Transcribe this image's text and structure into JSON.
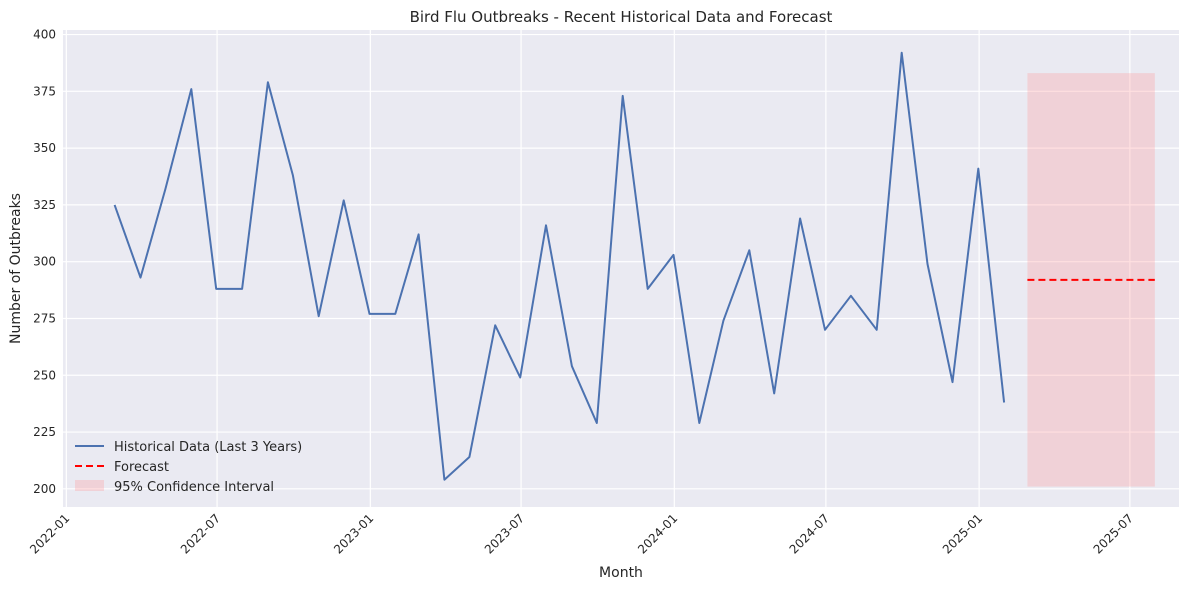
{
  "chart_data": {
    "type": "line",
    "title": "Bird Flu Outbreaks - Recent Historical Data and Forecast",
    "xlabel": "Month",
    "ylabel": "Number of Outbreaks",
    "ylim": [
      192,
      402
    ],
    "xlim": [
      "2021-12-28",
      "2025-08-29"
    ],
    "yticks": [
      200,
      225,
      250,
      275,
      300,
      325,
      350,
      375,
      400
    ],
    "xticks": [
      "2022-01",
      "2022-07",
      "2023-01",
      "2023-07",
      "2024-01",
      "2024-07",
      "2025-01",
      "2025-07"
    ],
    "grid": true,
    "legend_position": "lower-left",
    "series": [
      {
        "name": "Historical Data (Last 3 Years)",
        "color": "#4c72b0",
        "style": "solid",
        "x": [
          "2022-02-28",
          "2022-03-31",
          "2022-04-30",
          "2022-05-31",
          "2022-06-30",
          "2022-07-31",
          "2022-08-31",
          "2022-09-30",
          "2022-10-31",
          "2022-11-30",
          "2022-12-31",
          "2023-01-31",
          "2023-02-28",
          "2023-03-31",
          "2023-04-30",
          "2023-05-31",
          "2023-06-30",
          "2023-07-31",
          "2023-08-31",
          "2023-09-30",
          "2023-10-31",
          "2023-11-30",
          "2023-12-31",
          "2024-01-31",
          "2024-02-29",
          "2024-03-31",
          "2024-04-30",
          "2024-05-31",
          "2024-06-30",
          "2024-07-31",
          "2024-08-31",
          "2024-09-30",
          "2024-10-31",
          "2024-11-30",
          "2024-12-31",
          "2025-01-31"
        ],
        "values": [
          325,
          293,
          332,
          376,
          288,
          288,
          379,
          338,
          276,
          327,
          277,
          277,
          312,
          204,
          214,
          272,
          249,
          316,
          254,
          229,
          373,
          288,
          303,
          229,
          274,
          305,
          242,
          319,
          270,
          285,
          270,
          392,
          299,
          247,
          341,
          238
        ]
      },
      {
        "name": "Forecast",
        "color": "#ff0000",
        "style": "dashed",
        "x": [
          "2025-02-28",
          "2025-07-31"
        ],
        "values": [
          292,
          292
        ]
      }
    ],
    "confidence_interval": {
      "name": "95% Confidence Interval",
      "color": "#ff9999",
      "x": [
        "2025-02-28",
        "2025-07-31"
      ],
      "lower": 201,
      "upper": 383
    }
  }
}
